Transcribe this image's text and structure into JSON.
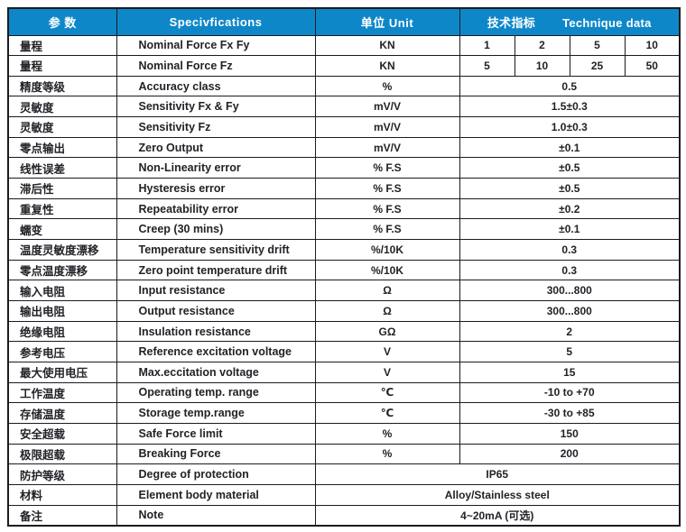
{
  "header": {
    "param": "参  数",
    "specs": "Specivfications",
    "unit": "单位  Unit",
    "data_cn": "技术指标",
    "data_en": "Technique data"
  },
  "colors": {
    "header_bg": "#0e87c9",
    "header_text": "#ffffff",
    "border": "#1b1b1f",
    "body_text": "#222228"
  },
  "rows": [
    {
      "cn": "量程",
      "en": "Nominal Force Fx Fy",
      "unit": "KN",
      "values": [
        "1",
        "2",
        "5",
        "10"
      ]
    },
    {
      "cn": "量程",
      "en": "Nominal Force Fz",
      "unit": "KN",
      "values": [
        "5",
        "10",
        "25",
        "50"
      ]
    },
    {
      "cn": "精度等级",
      "en": "Accuracy class",
      "unit": "%",
      "value": "0.5"
    },
    {
      "cn": "灵敏度",
      "en": "Sensitivity Fx & Fy",
      "unit": "mV/V",
      "value": "1.5±0.3"
    },
    {
      "cn": "灵敏度",
      "en": "Sensitivity Fz",
      "unit": "mV/V",
      "value": "1.0±0.3"
    },
    {
      "cn": "零点输出",
      "en": "Zero Output",
      "unit": "mV/V",
      "value": "±0.1"
    },
    {
      "cn": "线性误差",
      "en": "Non-Linearity error",
      "unit": "% F.S",
      "value": "±0.5"
    },
    {
      "cn": "滞后性",
      "en": "Hysteresis error",
      "unit": "% F.S",
      "value": "±0.5"
    },
    {
      "cn": "重复性",
      "en": "Repeatability error",
      "unit": "% F.S",
      "value": "±0.2"
    },
    {
      "cn": "蠕变",
      "en": "Creep (30 mins)",
      "unit": "% F.S",
      "value": "±0.1"
    },
    {
      "cn": "温度灵敏度漂移",
      "en": "Temperature sensitivity drift",
      "unit": "%/10K",
      "value": "0.3"
    },
    {
      "cn": "零点温度漂移",
      "en": "Zero point temperature drift",
      "unit": "%/10K",
      "value": "0.3"
    },
    {
      "cn": "输入电阻",
      "en": "Input resistance",
      "unit": "Ω",
      "value": "300...800"
    },
    {
      "cn": "输出电阻",
      "en": "Output resistance",
      "unit": "Ω",
      "value": "300...800"
    },
    {
      "cn": "绝缘电阻",
      "en": "Insulation resistance",
      "unit": "GΩ",
      "value": "2"
    },
    {
      "cn": "参考电压",
      "en": "Reference excitation voltage",
      "unit": "V",
      "value": "5"
    },
    {
      "cn": "最大使用电压",
      "en": "Max.eccitation voltage",
      "unit": "V",
      "value": "15"
    },
    {
      "cn": "工作温度",
      "en": "Operating temp. range",
      "unit": "℃",
      "value": "-10 to +70"
    },
    {
      "cn": "存储温度",
      "en": "Storage temp.range",
      "unit": "℃",
      "value": "-30 to +85"
    },
    {
      "cn": "安全超载",
      "en": "Safe Force limit",
      "unit": "%",
      "value": "150"
    },
    {
      "cn": "极限超载",
      "en": "Breaking Force",
      "unit": "%",
      "value": "200"
    },
    {
      "cn": "防护等级",
      "en": "Degree of protection",
      "span": true,
      "value": "IP65"
    },
    {
      "cn": "材料",
      "en": "Element body material",
      "span": true,
      "value": "Alloy/Stainless steel"
    },
    {
      "cn": "备注",
      "en": "Note",
      "span": true,
      "value": "4~20mA (可选)"
    }
  ]
}
